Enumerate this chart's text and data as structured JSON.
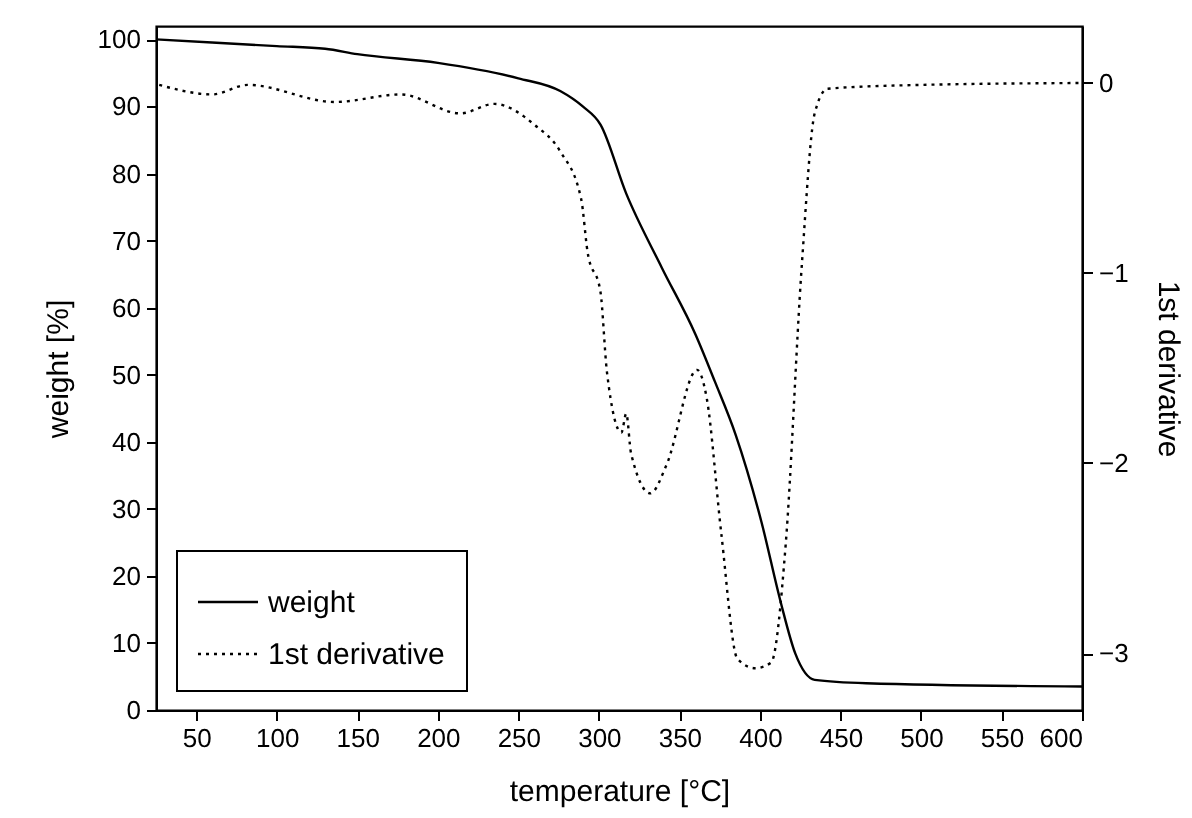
{
  "chart_data": {
    "type": "line",
    "xlabel": "temperature [°C]",
    "ylabel": "weight [%]",
    "y2label": "1st derivative",
    "xlim": [
      25,
      600
    ],
    "xticks": [
      50,
      100,
      150,
      200,
      250,
      300,
      350,
      400,
      450,
      500,
      550,
      600
    ],
    "ylim": [
      0,
      102
    ],
    "yticks": [
      0,
      10,
      20,
      30,
      40,
      50,
      60,
      70,
      80,
      90,
      100
    ],
    "y2lim": [
      -3.3,
      0.3
    ],
    "y2ticks": [
      -3,
      -2,
      -1,
      0
    ],
    "legend": "bottom left",
    "series": [
      {
        "name": "weight",
        "color": "#000000",
        "line_style": "solid",
        "x": [
          25,
          100,
          130,
          150,
          200,
          250,
          276,
          290,
          301,
          317,
          339,
          360,
          372,
          385,
          401,
          413,
          422,
          434,
          466,
          600
        ],
        "values": [
          100,
          99,
          98.6,
          97.8,
          96.5,
          94.2,
          92.3,
          90,
          87.3,
          77,
          66,
          56,
          49,
          41,
          28,
          16,
          8.4,
          4.5,
          4,
          3.5
        ]
      },
      {
        "name": "1st derivative",
        "color": "#000000",
        "line_style": "dotted",
        "axis": "y2",
        "x": [
          27,
          60,
          82,
          136,
          177,
          214,
          235,
          260,
          276,
          289,
          293,
          301,
          305,
          314,
          317,
          320,
          332,
          342,
          361,
          367,
          376,
          386,
          397,
          407,
          416,
          426,
          434,
          442,
          500,
          600
        ],
        "values": [
          -0.01,
          -0.06,
          -0.01,
          -0.1,
          -0.06,
          -0.16,
          -0.11,
          -0.22,
          -0.36,
          -0.61,
          -0.89,
          -1.1,
          -1.52,
          -1.84,
          -1.74,
          -1.95,
          -2.16,
          -2.01,
          -1.51,
          -1.66,
          -2.37,
          -3.03,
          -3.08,
          -3.05,
          -2.43,
          -0.96,
          -0.16,
          -0.03,
          -0.01,
          0
        ]
      }
    ]
  }
}
